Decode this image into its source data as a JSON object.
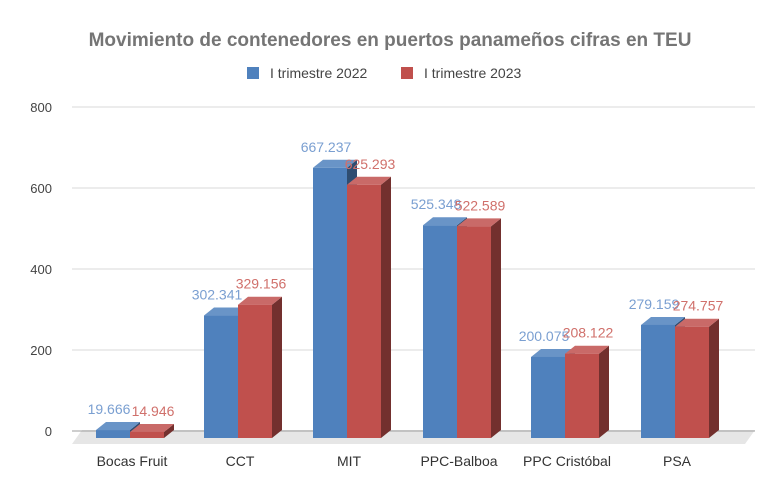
{
  "chart_data": {
    "type": "bar",
    "title": "Movimiento de contenedores en puertos panameños cifras en TEU",
    "categories": [
      "Bocas Fruit",
      "CCT",
      "MIT",
      "PPC-Balboa",
      "PPC Cristóbal",
      "PSA"
    ],
    "series": [
      {
        "name": "I trimestre 2022",
        "color": "#4f81bd",
        "values": [
          19.666,
          302.341,
          667.237,
          525.348,
          200.075,
          279.159
        ],
        "labels": [
          "19.666",
          "302.341",
          "667.237",
          "525.348",
          "200.075",
          "279.159"
        ]
      },
      {
        "name": "I trimestre 2023",
        "color": "#c0504d",
        "values": [
          14.946,
          329.156,
          625.293,
          522.589,
          208.122,
          274.757
        ],
        "labels": [
          "14.946",
          "329.156",
          "625.293",
          "522.589",
          "208.122",
          "274.757"
        ]
      }
    ],
    "yticks": [
      "0",
      "200",
      "400",
      "600",
      "800"
    ],
    "ylim": [
      0,
      800
    ],
    "xlabel": "",
    "ylabel": "",
    "grid": true,
    "legend": "top-center",
    "style": "3d-bar"
  }
}
